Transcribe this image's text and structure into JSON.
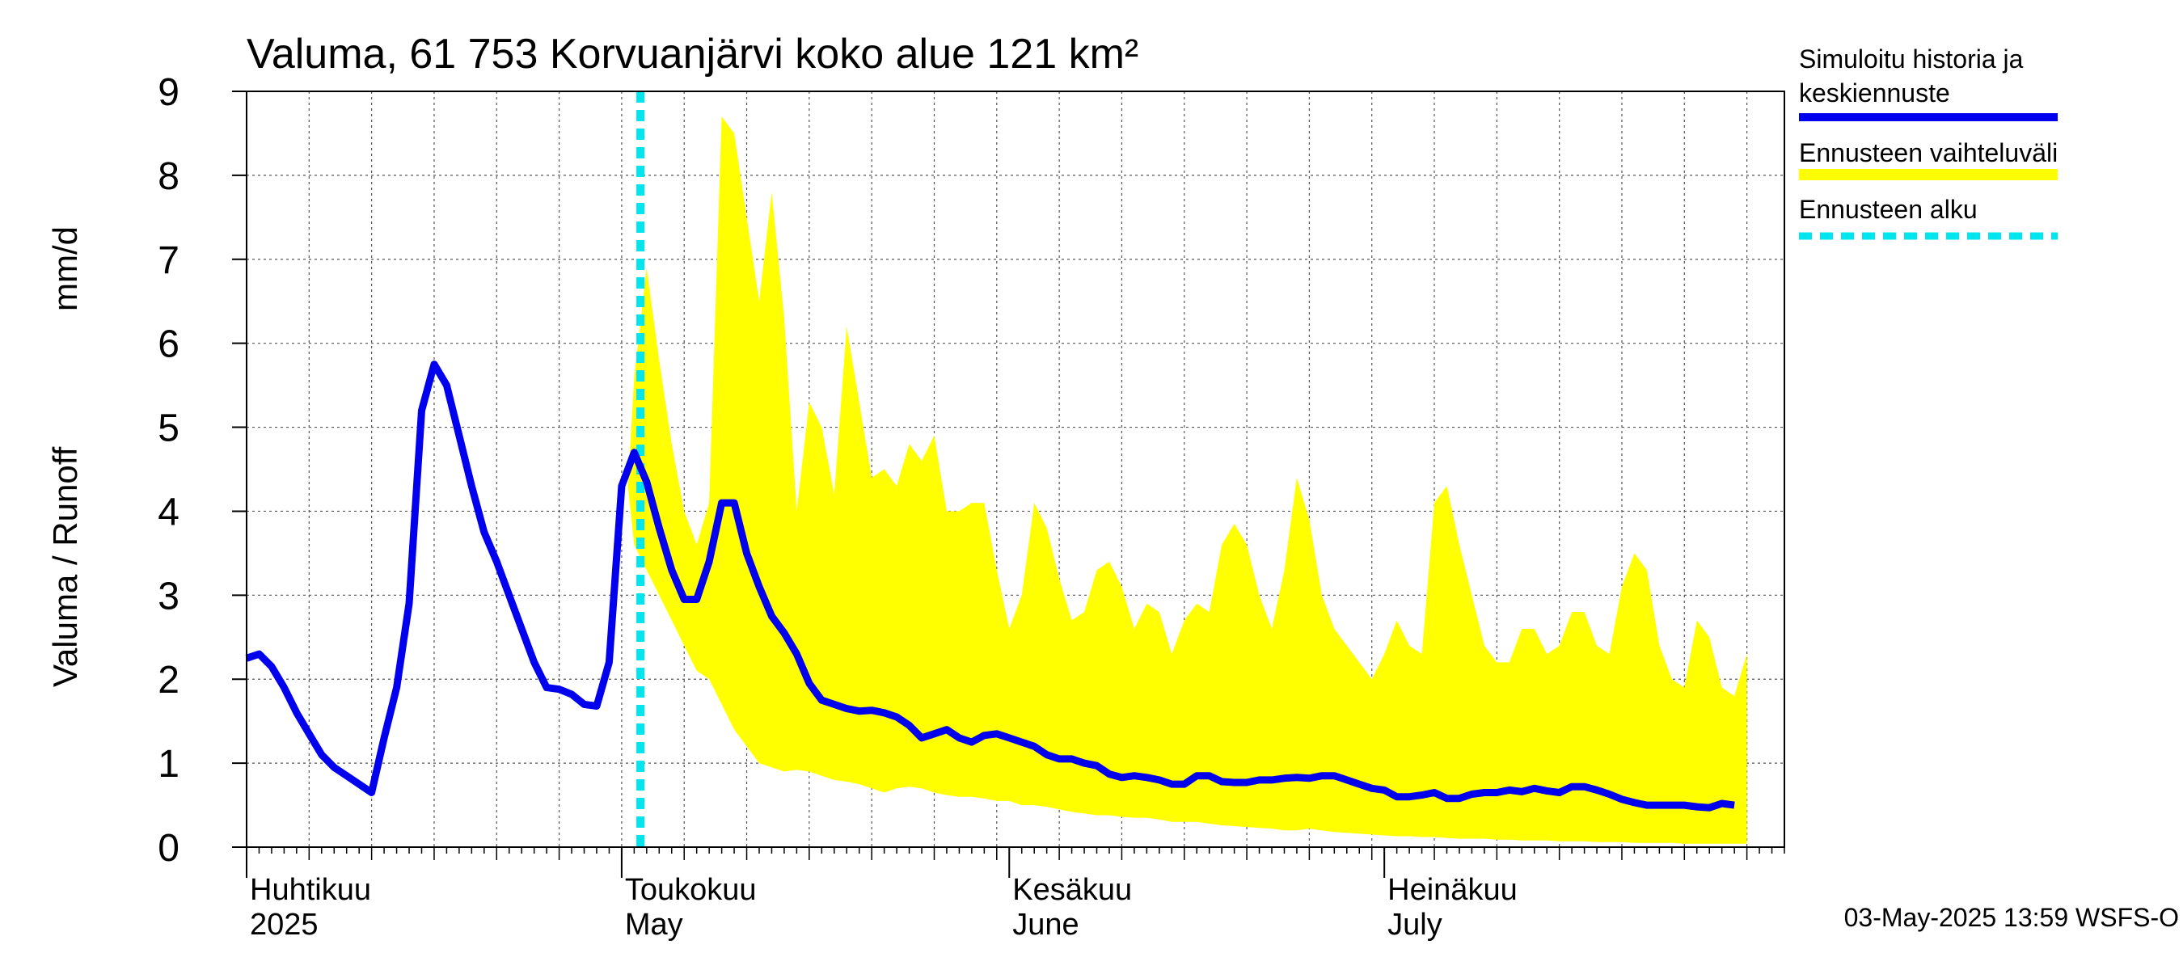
{
  "chart_data": {
    "type": "area",
    "title": "Valuma, 61 753 Korvuanjärvi koko alue 121 km²",
    "ylabel_fi": "Valuma / Runoff",
    "ylabel_unit": "mm/d",
    "ylim": [
      0,
      9
    ],
    "yticks": [
      "0",
      "1",
      "2",
      "3",
      "4",
      "5",
      "6",
      "7",
      "8",
      "9"
    ],
    "x_range_days": [
      0,
      123
    ],
    "month_labels": [
      {
        "day": 0,
        "line1": "Huhtikuu",
        "line2": "2025"
      },
      {
        "day": 30,
        "line1": "Toukokuu",
        "line2": "May"
      },
      {
        "day": 61,
        "line1": "Kesäkuu",
        "line2": "June"
      },
      {
        "day": 91,
        "line1": "Heinäkuu",
        "line2": "July"
      }
    ],
    "forecast_start_day": 31.5,
    "timestamp": "03-May-2025 13:59 WSFS-O",
    "legend": {
      "history": "Simuloitu historia ja keskiennuste",
      "range": "Ennusteen vaihteluväli",
      "start": "Ennusteen alku"
    },
    "colors": {
      "history": "#0000ee",
      "range": "#ffff00",
      "start": "#00e5ee",
      "grid": "#555555"
    },
    "series": [
      {
        "name": "Simuloitu historia ja keskiennuste",
        "points": [
          [
            0,
            2.25
          ],
          [
            1,
            2.3
          ],
          [
            2,
            2.15
          ],
          [
            3,
            1.9
          ],
          [
            4,
            1.6
          ],
          [
            5,
            1.35
          ],
          [
            6,
            1.1
          ],
          [
            7,
            0.95
          ],
          [
            8,
            0.85
          ],
          [
            9,
            0.75
          ],
          [
            10,
            0.65
          ],
          [
            11,
            1.3
          ],
          [
            12,
            1.9
          ],
          [
            13,
            2.9
          ],
          [
            14,
            5.2
          ],
          [
            15,
            5.75
          ],
          [
            16,
            5.5
          ],
          [
            17,
            4.9
          ],
          [
            18,
            4.3
          ],
          [
            19,
            3.75
          ],
          [
            20,
            3.4
          ],
          [
            21,
            3.0
          ],
          [
            22,
            2.6
          ],
          [
            23,
            2.2
          ],
          [
            24,
            1.9
          ],
          [
            25,
            1.88
          ],
          [
            26,
            1.82
          ],
          [
            27,
            1.7
          ],
          [
            28,
            1.68
          ],
          [
            29,
            2.2
          ],
          [
            30,
            4.3
          ],
          [
            31,
            4.7
          ],
          [
            32,
            4.35
          ],
          [
            33,
            3.8
          ],
          [
            34,
            3.3
          ],
          [
            35,
            2.95
          ],
          [
            36,
            2.95
          ],
          [
            37,
            3.4
          ],
          [
            38,
            4.1
          ],
          [
            39,
            4.1
          ],
          [
            40,
            3.5
          ],
          [
            41,
            3.1
          ],
          [
            42,
            2.75
          ],
          [
            43,
            2.55
          ],
          [
            44,
            2.3
          ],
          [
            45,
            1.95
          ],
          [
            46,
            1.75
          ],
          [
            47,
            1.7
          ],
          [
            48,
            1.65
          ],
          [
            49,
            1.62
          ],
          [
            50,
            1.63
          ],
          [
            51,
            1.6
          ],
          [
            52,
            1.55
          ],
          [
            53,
            1.45
          ],
          [
            54,
            1.3
          ],
          [
            55,
            1.35
          ],
          [
            56,
            1.4
          ],
          [
            57,
            1.3
          ],
          [
            58,
            1.25
          ],
          [
            59,
            1.33
          ],
          [
            60,
            1.35
          ],
          [
            61,
            1.3
          ],
          [
            62,
            1.25
          ],
          [
            63,
            1.2
          ],
          [
            64,
            1.1
          ],
          [
            65,
            1.05
          ],
          [
            66,
            1.05
          ],
          [
            67,
            1.0
          ],
          [
            68,
            0.97
          ],
          [
            69,
            0.87
          ],
          [
            70,
            0.83
          ],
          [
            71,
            0.85
          ],
          [
            72,
            0.83
          ],
          [
            73,
            0.8
          ],
          [
            74,
            0.75
          ],
          [
            75,
            0.75
          ],
          [
            76,
            0.85
          ],
          [
            77,
            0.85
          ],
          [
            78,
            0.78
          ],
          [
            79,
            0.77
          ],
          [
            80,
            0.77
          ],
          [
            81,
            0.8
          ],
          [
            82,
            0.8
          ],
          [
            83,
            0.82
          ],
          [
            84,
            0.83
          ],
          [
            85,
            0.82
          ],
          [
            86,
            0.85
          ],
          [
            87,
            0.85
          ],
          [
            88,
            0.8
          ],
          [
            89,
            0.75
          ],
          [
            90,
            0.7
          ],
          [
            91,
            0.68
          ],
          [
            92,
            0.6
          ],
          [
            93,
            0.6
          ],
          [
            94,
            0.62
          ],
          [
            95,
            0.65
          ],
          [
            96,
            0.58
          ],
          [
            97,
            0.58
          ],
          [
            98,
            0.63
          ],
          [
            99,
            0.65
          ],
          [
            100,
            0.65
          ],
          [
            101,
            0.68
          ],
          [
            102,
            0.66
          ],
          [
            103,
            0.7
          ],
          [
            104,
            0.67
          ],
          [
            105,
            0.65
          ],
          [
            106,
            0.72
          ],
          [
            107,
            0.72
          ],
          [
            108,
            0.68
          ],
          [
            109,
            0.63
          ],
          [
            110,
            0.57
          ],
          [
            111,
            0.53
          ],
          [
            112,
            0.5
          ],
          [
            113,
            0.5
          ],
          [
            114,
            0.5
          ],
          [
            115,
            0.5
          ],
          [
            116,
            0.48
          ],
          [
            117,
            0.47
          ],
          [
            118,
            0.52
          ],
          [
            119,
            0.5
          ]
        ]
      },
      {
        "name": "Ennusteen vaihteluväli",
        "upper": [
          [
            30.5,
            4.3
          ],
          [
            31,
            5.6
          ],
          [
            32,
            6.9
          ],
          [
            33,
            5.8
          ],
          [
            34,
            4.8
          ],
          [
            35,
            4.0
          ],
          [
            36,
            3.6
          ],
          [
            37,
            4.1
          ],
          [
            38,
            8.7
          ],
          [
            39,
            8.5
          ],
          [
            40,
            7.5
          ],
          [
            41,
            6.5
          ],
          [
            42,
            7.8
          ],
          [
            43,
            6.3
          ],
          [
            44,
            4.0
          ],
          [
            45,
            5.3
          ],
          [
            46,
            5.0
          ],
          [
            47,
            4.2
          ],
          [
            48,
            6.2
          ],
          [
            49,
            5.3
          ],
          [
            50,
            4.4
          ],
          [
            51,
            4.5
          ],
          [
            52,
            4.3
          ],
          [
            53,
            4.8
          ],
          [
            54,
            4.6
          ],
          [
            55,
            4.9
          ],
          [
            56,
            4.0
          ],
          [
            57,
            4.0
          ],
          [
            58,
            4.1
          ],
          [
            59,
            4.1
          ],
          [
            60,
            3.3
          ],
          [
            61,
            2.6
          ],
          [
            62,
            3.0
          ],
          [
            63,
            4.1
          ],
          [
            64,
            3.8
          ],
          [
            65,
            3.2
          ],
          [
            66,
            2.7
          ],
          [
            67,
            2.8
          ],
          [
            68,
            3.3
          ],
          [
            69,
            3.4
          ],
          [
            70,
            3.1
          ],
          [
            71,
            2.6
          ],
          [
            72,
            2.9
          ],
          [
            73,
            2.8
          ],
          [
            74,
            2.3
          ],
          [
            75,
            2.7
          ],
          [
            76,
            2.9
          ],
          [
            77,
            2.8
          ],
          [
            78,
            3.6
          ],
          [
            79,
            3.85
          ],
          [
            80,
            3.6
          ],
          [
            81,
            3.0
          ],
          [
            82,
            2.6
          ],
          [
            83,
            3.3
          ],
          [
            84,
            4.4
          ],
          [
            85,
            3.9
          ],
          [
            86,
            3.0
          ],
          [
            87,
            2.6
          ],
          [
            88,
            2.4
          ],
          [
            89,
            2.2
          ],
          [
            90,
            2.0
          ],
          [
            91,
            2.3
          ],
          [
            92,
            2.7
          ],
          [
            93,
            2.4
          ],
          [
            94,
            2.3
          ],
          [
            95,
            4.1
          ],
          [
            96,
            4.3
          ],
          [
            97,
            3.6
          ],
          [
            98,
            3.0
          ],
          [
            99,
            2.4
          ],
          [
            100,
            2.2
          ],
          [
            101,
            2.2
          ],
          [
            102,
            2.6
          ],
          [
            103,
            2.6
          ],
          [
            104,
            2.3
          ],
          [
            105,
            2.4
          ],
          [
            106,
            2.8
          ],
          [
            107,
            2.8
          ],
          [
            108,
            2.4
          ],
          [
            109,
            2.3
          ],
          [
            110,
            3.1
          ],
          [
            111,
            3.5
          ],
          [
            112,
            3.3
          ],
          [
            113,
            2.4
          ],
          [
            114,
            2.0
          ],
          [
            115,
            1.9
          ],
          [
            116,
            2.7
          ],
          [
            117,
            2.5
          ],
          [
            118,
            1.9
          ],
          [
            119,
            1.8
          ],
          [
            120,
            2.3
          ]
        ],
        "lower": [
          [
            30.5,
            4.3
          ],
          [
            31,
            3.6
          ],
          [
            32,
            3.3
          ],
          [
            33,
            3.0
          ],
          [
            34,
            2.7
          ],
          [
            35,
            2.4
          ],
          [
            36,
            2.1
          ],
          [
            37,
            2.0
          ],
          [
            38,
            1.7
          ],
          [
            39,
            1.4
          ],
          [
            40,
            1.2
          ],
          [
            41,
            1.0
          ],
          [
            42,
            0.95
          ],
          [
            43,
            0.9
          ],
          [
            44,
            0.92
          ],
          [
            45,
            0.9
          ],
          [
            46,
            0.85
          ],
          [
            47,
            0.8
          ],
          [
            48,
            0.78
          ],
          [
            49,
            0.75
          ],
          [
            50,
            0.7
          ],
          [
            51,
            0.65
          ],
          [
            52,
            0.7
          ],
          [
            53,
            0.72
          ],
          [
            54,
            0.7
          ],
          [
            55,
            0.65
          ],
          [
            56,
            0.62
          ],
          [
            57,
            0.6
          ],
          [
            58,
            0.6
          ],
          [
            59,
            0.58
          ],
          [
            60,
            0.55
          ],
          [
            61,
            0.55
          ],
          [
            62,
            0.5
          ],
          [
            63,
            0.5
          ],
          [
            64,
            0.48
          ],
          [
            65,
            0.45
          ],
          [
            66,
            0.42
          ],
          [
            67,
            0.4
          ],
          [
            68,
            0.38
          ],
          [
            69,
            0.38
          ],
          [
            70,
            0.36
          ],
          [
            71,
            0.35
          ],
          [
            72,
            0.35
          ],
          [
            73,
            0.33
          ],
          [
            74,
            0.3
          ],
          [
            75,
            0.3
          ],
          [
            76,
            0.3
          ],
          [
            77,
            0.28
          ],
          [
            78,
            0.26
          ],
          [
            79,
            0.25
          ],
          [
            80,
            0.24
          ],
          [
            81,
            0.23
          ],
          [
            82,
            0.22
          ],
          [
            83,
            0.2
          ],
          [
            84,
            0.2
          ],
          [
            85,
            0.22
          ],
          [
            86,
            0.2
          ],
          [
            87,
            0.18
          ],
          [
            88,
            0.17
          ],
          [
            89,
            0.16
          ],
          [
            90,
            0.15
          ],
          [
            91,
            0.14
          ],
          [
            92,
            0.13
          ],
          [
            93,
            0.13
          ],
          [
            94,
            0.12
          ],
          [
            95,
            0.12
          ],
          [
            96,
            0.11
          ],
          [
            97,
            0.1
          ],
          [
            98,
            0.1
          ],
          [
            99,
            0.1
          ],
          [
            100,
            0.09
          ],
          [
            101,
            0.09
          ],
          [
            102,
            0.08
          ],
          [
            103,
            0.08
          ],
          [
            104,
            0.08
          ],
          [
            105,
            0.07
          ],
          [
            106,
            0.07
          ],
          [
            107,
            0.07
          ],
          [
            108,
            0.06
          ],
          [
            109,
            0.06
          ],
          [
            110,
            0.06
          ],
          [
            111,
            0.05
          ],
          [
            112,
            0.05
          ],
          [
            113,
            0.05
          ],
          [
            114,
            0.05
          ],
          [
            115,
            0.04
          ],
          [
            116,
            0.04
          ],
          [
            117,
            0.04
          ],
          [
            118,
            0.04
          ],
          [
            119,
            0.04
          ],
          [
            120,
            0.04
          ]
        ]
      }
    ]
  }
}
